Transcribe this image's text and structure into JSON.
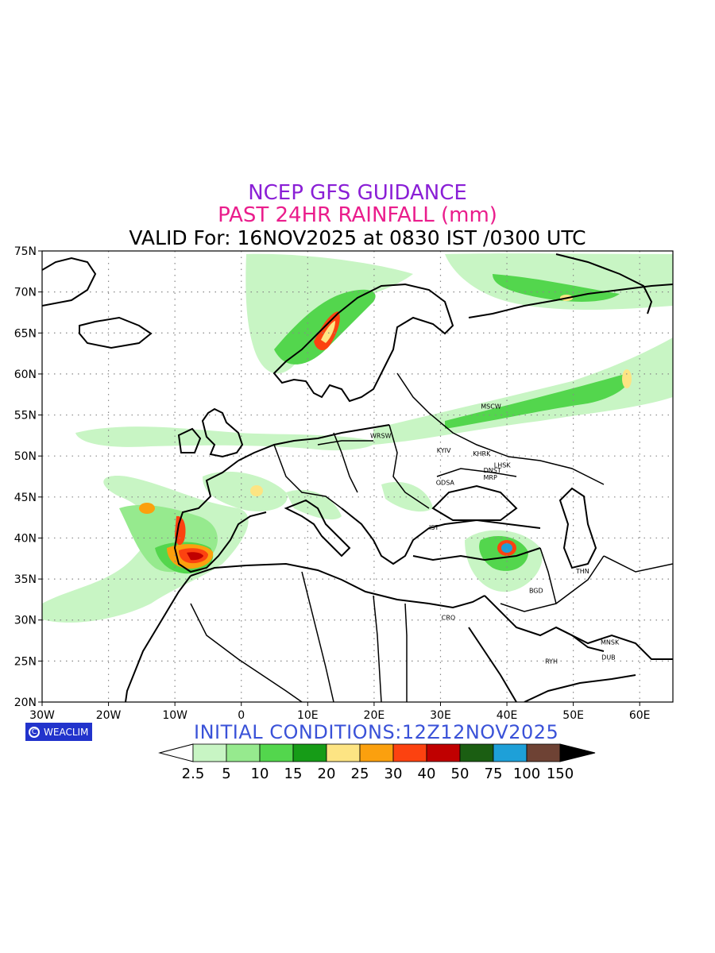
{
  "header": {
    "line1": "NCEP GFS GUIDANCE",
    "line1_color": "#8a1fd6",
    "line2": "PAST 24HR RAINFALL (mm)",
    "line2_color": "#ea1d8c",
    "line3": "VALID For: 16NOV2025 at 0830 IST /0300 UTC"
  },
  "footer": {
    "initial_conditions": "INITIAL CONDITIONS:12Z12NOV2025",
    "initial_color": "#3a52d8",
    "logo_text": "WEACLIM"
  },
  "map": {
    "lon_range": [
      -30,
      65
    ],
    "lat_range": [
      20,
      75
    ],
    "lon_labels": [
      "30W",
      "20W",
      "10W",
      "0",
      "10E",
      "20E",
      "30E",
      "40E",
      "50E",
      "60E"
    ],
    "lat_labels": [
      "75N",
      "70N",
      "65N",
      "60N",
      "55N",
      "50N",
      "45N",
      "40N",
      "35N",
      "30N",
      "25N",
      "20N"
    ],
    "grid": true,
    "cities": [
      {
        "name": "MSCW",
        "lon": 37.6,
        "lat": 55.8
      },
      {
        "name": "WRSW",
        "lon": 21.0,
        "lat": 52.2
      },
      {
        "name": "KYIV",
        "lon": 30.5,
        "lat": 50.4
      },
      {
        "name": "KHRK",
        "lon": 36.2,
        "lat": 50.0
      },
      {
        "name": "LHSK",
        "lon": 39.3,
        "lat": 48.6
      },
      {
        "name": "DNST",
        "lon": 37.8,
        "lat": 48.0
      },
      {
        "name": "MRP",
        "lon": 37.5,
        "lat": 47.1
      },
      {
        "name": "ODSA",
        "lon": 30.7,
        "lat": 46.5
      },
      {
        "name": "IST",
        "lon": 29.0,
        "lat": 41.0
      },
      {
        "name": "THN",
        "lon": 51.4,
        "lat": 35.7
      },
      {
        "name": "BGD",
        "lon": 44.4,
        "lat": 33.3
      },
      {
        "name": "CRO",
        "lon": 31.2,
        "lat": 30.0
      },
      {
        "name": "MNSK",
        "lon": 55.5,
        "lat": 27.0
      },
      {
        "name": "RYH",
        "lon": 46.7,
        "lat": 24.7
      },
      {
        "name": "DUB",
        "lon": 55.3,
        "lat": 25.2
      }
    ]
  },
  "legend": {
    "labels": [
      "2.5",
      "5",
      "10",
      "15",
      "20",
      "25",
      "30",
      "40",
      "50",
      "75",
      "100",
      "150"
    ],
    "colors": [
      "#c8f5c4",
      "#96ea8e",
      "#53d64d",
      "#169c17",
      "#fde483",
      "#fba00e",
      "#fc4210",
      "#c00000",
      "#1b5e12",
      "#1ea0d8",
      "#6e4234"
    ]
  },
  "chart_data": {
    "type": "heatmap",
    "variable": "PAST 24HR RAINFALL (mm)",
    "levels": [
      2.5,
      5,
      10,
      15,
      20,
      25,
      30,
      40,
      50,
      75,
      100,
      150
    ]
  }
}
